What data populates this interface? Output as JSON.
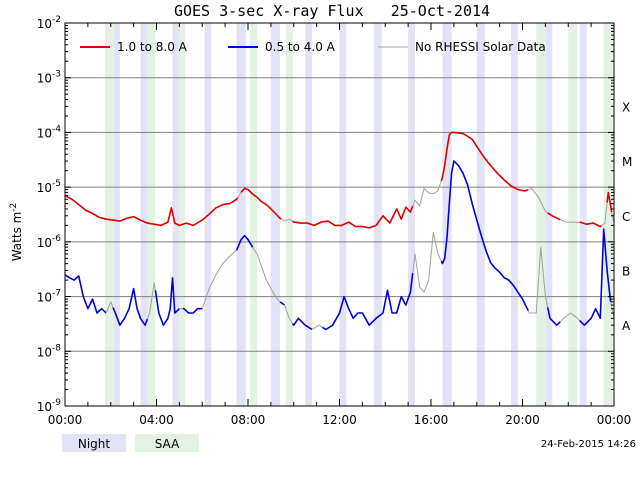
{
  "chart_data": {
    "type": "line",
    "title": "GOES 3-sec X-ray Flux   25-Oct-2014",
    "ylabel": "Watts m",
    "ylabel_sup": "-2",
    "yscale": "log",
    "ylim": [
      1e-09,
      0.01
    ],
    "xlim": [
      "00:00",
      "24:00"
    ],
    "grid": true,
    "legend_position": "top",
    "y_ticks": [
      {
        "value": 1e-09,
        "base": "10",
        "exp": "-9"
      },
      {
        "value": 1e-08,
        "base": "10",
        "exp": "-8"
      },
      {
        "value": 1e-07,
        "base": "10",
        "exp": "-7"
      },
      {
        "value": 1e-06,
        "base": "10",
        "exp": "-6"
      },
      {
        "value": 1e-05,
        "base": "10",
        "exp": "-5"
      },
      {
        "value": 0.0001,
        "base": "10",
        "exp": "-4"
      },
      {
        "value": 0.001,
        "base": "10",
        "exp": "-3"
      },
      {
        "value": 0.01,
        "base": "10",
        "exp": "-2"
      }
    ],
    "x_ticks": [
      {
        "hour": 0,
        "label": "00:00"
      },
      {
        "hour": 4,
        "label": "04:00"
      },
      {
        "hour": 8,
        "label": "08:00"
      },
      {
        "hour": 12,
        "label": "12:00"
      },
      {
        "hour": 16,
        "label": "16:00"
      },
      {
        "hour": 20,
        "label": "20:00"
      },
      {
        "hour": 24,
        "label": "00:00"
      }
    ],
    "flare_classes": [
      {
        "label": "A",
        "value": 3e-08
      },
      {
        "label": "B",
        "value": 3e-07
      },
      {
        "label": "C",
        "value": 3e-06
      },
      {
        "label": "M",
        "value": 3e-05
      },
      {
        "label": "X",
        "value": 0.0003
      }
    ],
    "night_bands": [
      [
        2.1,
        2.4
      ],
      [
        3.3,
        3.65
      ],
      [
        4.7,
        5.0
      ],
      [
        6.1,
        6.4
      ],
      [
        7.5,
        7.9
      ],
      [
        9.0,
        9.4
      ],
      [
        10.5,
        10.8
      ],
      [
        12.0,
        12.3
      ],
      [
        13.5,
        13.85
      ],
      [
        15.0,
        15.3
      ],
      [
        16.5,
        16.9
      ],
      [
        18.0,
        18.35
      ],
      [
        19.5,
        19.8
      ],
      [
        21.0,
        21.3
      ],
      [
        22.5,
        22.8
      ]
    ],
    "saa_bands": [
      [
        1.75,
        2.15
      ],
      [
        3.6,
        3.95
      ],
      [
        5.0,
        5.25
      ],
      [
        8.1,
        8.4
      ],
      [
        9.65,
        9.95
      ],
      [
        20.6,
        21.0
      ],
      [
        22.0,
        22.4
      ],
      [
        23.55,
        23.95
      ]
    ],
    "series": [
      {
        "name": "1.0 to 8.0 A",
        "color": "#e00000",
        "gap_color": "#a0a0a0",
        "x": [
          0,
          0.3,
          0.6,
          0.9,
          1.2,
          1.5,
          1.8,
          2.1,
          2.4,
          2.7,
          3.0,
          3.3,
          3.6,
          3.9,
          4.2,
          4.5,
          4.65,
          4.8,
          5.0,
          5.3,
          5.6,
          6.0,
          6.3,
          6.6,
          6.9,
          7.2,
          7.5,
          7.7,
          7.85,
          8.0,
          8.2,
          8.4,
          8.6,
          8.8,
          9.0,
          9.2,
          9.4,
          9.6,
          9.8,
          10.0,
          10.3,
          10.6,
          10.9,
          11.2,
          11.5,
          11.8,
          12.1,
          12.4,
          12.7,
          13.0,
          13.3,
          13.6,
          13.9,
          14.2,
          14.5,
          14.7,
          14.9,
          15.1,
          15.3,
          15.5,
          15.7,
          15.9,
          16.1,
          16.3,
          16.5,
          16.6,
          16.7,
          16.8,
          16.9,
          17.0,
          17.2,
          17.4,
          17.6,
          17.8,
          18.0,
          18.3,
          18.6,
          18.9,
          19.2,
          19.5,
          19.8,
          20.1,
          20.4,
          20.7,
          21.0,
          21.3,
          21.6,
          21.9,
          22.2,
          22.5,
          22.8,
          23.1,
          23.4,
          23.6,
          23.75,
          23.9,
          24.0
        ],
        "values": [
          7e-06,
          6e-06,
          4.8e-06,
          3.8e-06,
          3.3e-06,
          2.8e-06,
          2.6e-06,
          2.5e-06,
          2.4e-06,
          2.7e-06,
          2.9e-06,
          2.5e-06,
          2.2e-06,
          2.1e-06,
          2e-06,
          2.3e-06,
          4.2e-06,
          2.2e-06,
          2e-06,
          2.2e-06,
          2e-06,
          2.5e-06,
          3.2e-06,
          4.2e-06,
          4.8e-06,
          5e-06,
          6e-06,
          8e-06,
          9.5e-06,
          9e-06,
          7.5e-06,
          6.5e-06,
          5.4e-06,
          4.8e-06,
          4e-06,
          3.3e-06,
          2.7e-06,
          2.4e-06,
          2.6e-06,
          2.3e-06,
          2.2e-06,
          2.2e-06,
          2e-06,
          2.3e-06,
          2.4e-06,
          2e-06,
          2e-06,
          2.3e-06,
          1.9e-06,
          1.9e-06,
          1.8e-06,
          2e-06,
          3e-06,
          2.2e-06,
          4e-06,
          2.6e-06,
          4.3e-06,
          3.5e-06,
          5.8e-06,
          4.5e-06,
          9.5e-06,
          7.8e-06,
          7.6e-06,
          8.5e-06,
          1.5e-05,
          2.5e-05,
          5e-05,
          9e-05,
          0.0001,
          0.0001,
          9.8e-05,
          9.5e-05,
          8.5e-05,
          7.5e-05,
          5.5e-05,
          3.6e-05,
          2.5e-05,
          1.8e-05,
          1.35e-05,
          1.05e-05,
          9e-06,
          8.5e-06,
          9.5e-06,
          6.5e-06,
          3.6e-06,
          3e-06,
          2.6e-06,
          2.3e-06,
          2.3e-06,
          2.3e-06,
          2.1e-06,
          2.2e-06,
          1.9e-06,
          2.2e-06,
          8e-06,
          3.5e-06,
          2.2e-06
        ],
        "gaps": [
          [
            7.55,
            7.7
          ],
          [
            9.45,
            9.95
          ],
          [
            15.2,
            16.45
          ],
          [
            20.25,
            21.1
          ],
          [
            21.65,
            22.5
          ],
          [
            23.45,
            23.7
          ],
          [
            23.9,
            24.0
          ]
        ]
      },
      {
        "name": "0.5 to 4.0 A",
        "color": "#0000e0",
        "gap_color": "#a0a0a0",
        "x": [
          0,
          0.2,
          0.4,
          0.6,
          0.8,
          1.0,
          1.2,
          1.4,
          1.6,
          1.8,
          2.0,
          2.2,
          2.4,
          2.6,
          2.8,
          3.0,
          3.15,
          3.3,
          3.5,
          3.7,
          3.9,
          4.1,
          4.3,
          4.5,
          4.6,
          4.7,
          4.8,
          5.0,
          5.2,
          5.4,
          5.6,
          5.8,
          6.0,
          6.3,
          6.6,
          6.9,
          7.2,
          7.5,
          7.7,
          7.85,
          8.0,
          8.2,
          8.4,
          8.6,
          8.8,
          9.0,
          9.2,
          9.4,
          9.6,
          9.8,
          10.0,
          10.2,
          10.5,
          10.8,
          11.1,
          11.4,
          11.7,
          12.0,
          12.2,
          12.4,
          12.6,
          12.8,
          13.0,
          13.3,
          13.6,
          13.9,
          14.1,
          14.3,
          14.5,
          14.7,
          14.9,
          15.1,
          15.3,
          15.5,
          15.7,
          15.9,
          16.1,
          16.3,
          16.5,
          16.6,
          16.7,
          16.8,
          16.9,
          17.0,
          17.2,
          17.4,
          17.6,
          17.8,
          18.0,
          18.2,
          18.4,
          18.6,
          18.8,
          19.0,
          19.2,
          19.4,
          19.6,
          19.8,
          20.0,
          20.3,
          20.6,
          20.8,
          21.0,
          21.2,
          21.5,
          21.8,
          22.1,
          22.4,
          22.7,
          23.0,
          23.2,
          23.4,
          23.55,
          23.7,
          23.85,
          24.0
        ],
        "values": [
          2.5e-07,
          2.2e-07,
          2e-07,
          2.4e-07,
          1e-07,
          6e-08,
          9e-08,
          5e-08,
          6e-08,
          5e-08,
          8e-08,
          5e-08,
          3e-08,
          4e-08,
          6e-08,
          1.4e-07,
          6e-08,
          4e-08,
          3e-08,
          5e-08,
          1.8e-07,
          5e-08,
          3e-08,
          4e-08,
          6e-08,
          2.2e-07,
          5e-08,
          6e-08,
          6e-08,
          5e-08,
          5e-08,
          6e-08,
          6e-08,
          1.4e-07,
          2.5e-07,
          4e-07,
          5.5e-07,
          7e-07,
          1.1e-06,
          1.3e-06,
          1.1e-06,
          8e-07,
          6e-07,
          3.5e-07,
          2e-07,
          1.4e-07,
          1e-07,
          8e-08,
          7e-08,
          4e-08,
          3e-08,
          4e-08,
          3e-08,
          2.5e-08,
          3e-08,
          2.5e-08,
          3e-08,
          5e-08,
          1e-07,
          6e-08,
          4e-08,
          5e-08,
          5e-08,
          3e-08,
          4e-08,
          5e-08,
          1.3e-07,
          5e-08,
          5e-08,
          1e-07,
          7e-08,
          1.2e-07,
          6e-07,
          1.5e-07,
          1.2e-07,
          2e-07,
          1.5e-06,
          6e-07,
          4e-07,
          5e-07,
          1.2e-06,
          5e-06,
          1.8e-05,
          3e-05,
          2.5e-05,
          1.8e-05,
          1.1e-05,
          5e-06,
          2.5e-06,
          1.3e-06,
          7e-07,
          4.2e-07,
          3.3e-07,
          2.8e-07,
          2.2e-07,
          2e-07,
          1.6e-07,
          1.2e-07,
          9e-08,
          5e-08,
          5e-08,
          8e-07,
          1e-07,
          4e-08,
          3e-08,
          4e-08,
          5e-08,
          4e-08,
          3e-08,
          4e-08,
          6e-08,
          4e-08,
          1.7e-06,
          3e-07,
          8e-08,
          4e-08
        ],
        "gaps": [
          [
            1.8,
            2.1
          ],
          [
            3.6,
            3.95
          ],
          [
            5.0,
            5.15
          ],
          [
            6.0,
            7.5
          ],
          [
            8.2,
            9.4
          ],
          [
            9.6,
            9.95
          ],
          [
            10.8,
            11.25
          ],
          [
            15.2,
            16.45
          ],
          [
            20.25,
            21.1
          ],
          [
            21.65,
            22.5
          ],
          [
            23.85,
            24.0
          ]
        ]
      }
    ],
    "gap_legend": {
      "name": "No RHESSI Solar Data",
      "color": "#a0a0a0"
    }
  },
  "footer": {
    "night_label": "Night",
    "saa_label": "SAA",
    "timestamp": "24-Feb-2015 14:26"
  },
  "colors": {
    "night": "#e3e3f6",
    "saa": "#e3f2e3",
    "grid": "#808080",
    "axis": "#000000"
  }
}
